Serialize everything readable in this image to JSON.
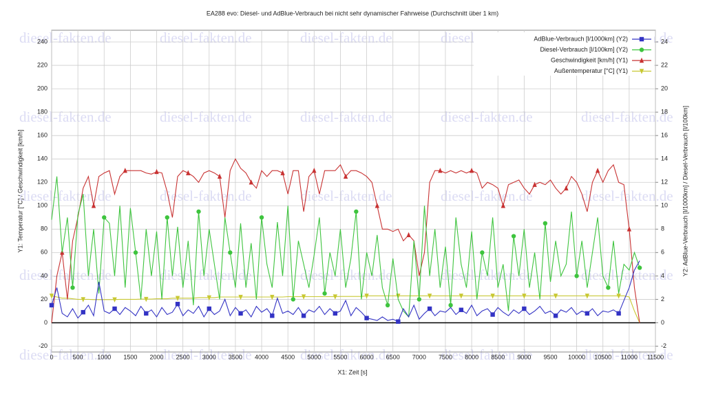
{
  "chart_data": {
    "type": "line",
    "title": "EA288 evo: Diesel- und AdBlue-Verbrauch bei nicht sehr dynamischer Fahrweise (Durchschnitt über 1 km)",
    "watermark": "diesel-fakten.de",
    "x_label": "X1: Zeit [s]",
    "y_label": "Y1: Temperatur [°C] / Geschwindigkeit [km/h]",
    "y2_label": "Y2: AdBlue-Verbrauch [l/1000km] / Diesel-Verbrauch [l/100km]",
    "xlim": [
      0,
      11500
    ],
    "ylim": [
      -25,
      250
    ],
    "y2lim": [
      -2.5,
      25
    ],
    "xticks": [
      0,
      500,
      1000,
      1500,
      2000,
      2500,
      3000,
      3500,
      4000,
      4500,
      5000,
      5500,
      6000,
      6500,
      7000,
      7500,
      8000,
      8500,
      9000,
      9500,
      10000,
      10500,
      11000,
      11500
    ],
    "yticks": [
      -20,
      0,
      20,
      40,
      60,
      80,
      100,
      120,
      140,
      160,
      180,
      200,
      220,
      240
    ],
    "y2ticks": [
      -2,
      0,
      2,
      4,
      6,
      8,
      10,
      12,
      14,
      16,
      18,
      20,
      22,
      24
    ],
    "grid": true,
    "legend": "upper right",
    "x": [
      0,
      100,
      200,
      300,
      400,
      500,
      600,
      700,
      800,
      900,
      1000,
      1100,
      1200,
      1300,
      1400,
      1500,
      1600,
      1700,
      1800,
      1900,
      2000,
      2100,
      2200,
      2300,
      2400,
      2500,
      2600,
      2700,
      2800,
      2900,
      3000,
      3100,
      3200,
      3300,
      3400,
      3500,
      3600,
      3700,
      3800,
      3900,
      4000,
      4100,
      4200,
      4300,
      4400,
      4500,
      4600,
      4700,
      4800,
      4900,
      5000,
      5100,
      5200,
      5300,
      5400,
      5500,
      5600,
      5700,
      5800,
      5900,
      6000,
      6100,
      6200,
      6300,
      6400,
      6500,
      6600,
      6700,
      6800,
      6900,
      7000,
      7100,
      7200,
      7300,
      7400,
      7500,
      7600,
      7700,
      7800,
      7900,
      8000,
      8100,
      8200,
      8300,
      8400,
      8500,
      8600,
      8700,
      8800,
      8900,
      9000,
      9100,
      9200,
      9300,
      9400,
      9500,
      9600,
      9700,
      9800,
      9900,
      10000,
      10100,
      10200,
      10300,
      10400,
      10500,
      10600,
      10700,
      10800,
      10900,
      11000,
      11100,
      11200
    ],
    "series": [
      {
        "name": "AdBlue-Verbrauch [l/1000km] (Y2)",
        "color": "#3333c4",
        "marker": "square",
        "axis": "y2",
        "values": [
          1.5,
          3,
          0.8,
          0.5,
          1.2,
          0.4,
          0.9,
          1.5,
          0.6,
          3.5,
          1,
          0.8,
          1.2,
          0.7,
          1.3,
          1,
          0.6,
          1.4,
          0.8,
          1.1,
          0.5,
          1.3,
          0.7,
          0.9,
          1.6,
          0.6,
          1.1,
          0.8,
          1.4,
          0.5,
          1.2,
          0.7,
          1,
          2,
          0.6,
          1.3,
          0.8,
          1.1,
          0.5,
          1.4,
          0.9,
          1.2,
          0.6,
          2.1,
          0.8,
          1,
          0.7,
          1.3,
          0.6,
          1.1,
          0.9,
          1.4,
          0.7,
          1.2,
          0.8,
          1,
          1.9,
          0.6,
          1.3,
          0.9,
          0.4,
          0.3,
          0.2,
          0.5,
          0.2,
          0.3,
          0.1,
          1.2,
          0.5,
          1.5,
          0.3,
          0.8,
          1.2,
          0.6,
          1,
          0.9,
          1.3,
          0.7,
          1.1,
          0.8,
          1.5,
          0.6,
          1,
          1.2,
          0.7,
          1.3,
          0.9,
          0.6,
          1.1,
          0.8,
          1.2,
          0.7,
          1,
          1.4,
          0.8,
          1,
          0.6,
          1.1,
          0.9,
          1.3,
          0.7,
          1,
          0.8,
          1.2,
          0.6,
          1,
          0.9,
          1.1,
          0.8,
          1.9,
          3,
          4.5,
          5.3
        ]
      },
      {
        "name": "Diesel-Verbrauch [l/100km] (Y2)",
        "color": "#3ec43e",
        "marker": "circle",
        "axis": "y2",
        "values": [
          8.8,
          12.5,
          6,
          9,
          3,
          9.2,
          11,
          4,
          8,
          2.5,
          9,
          8.5,
          4,
          10,
          3,
          9.8,
          6,
          2,
          8,
          4,
          7.8,
          2,
          9,
          4,
          8.2,
          3,
          7,
          1.5,
          9.5,
          4,
          8,
          5,
          2,
          9,
          6,
          3,
          8.5,
          3,
          6.8,
          2,
          9,
          5,
          3,
          8.6,
          4,
          10,
          2,
          7,
          5,
          3,
          5.8,
          9,
          2.5,
          6,
          4,
          8,
          3,
          5.5,
          9.5,
          2,
          6,
          4,
          7.5,
          3,
          1.5,
          5.5,
          2,
          1,
          0.5,
          7,
          2,
          10,
          4,
          8,
          3,
          6.5,
          1.5,
          9,
          5,
          3,
          7.8,
          2,
          6,
          4,
          9,
          3,
          5,
          1,
          7.4,
          4,
          8,
          3,
          6,
          2,
          8.5,
          3.5,
          7,
          4,
          5,
          9.5,
          4,
          7,
          3,
          6,
          9,
          4,
          3,
          7,
          2.5,
          5,
          4.5,
          6,
          4.7
        ]
      },
      {
        "name": "Geschwindigkeit [km/h] (Y1)",
        "color": "#c83232",
        "marker": "triangle-up",
        "values": [
          0,
          40,
          60,
          20,
          70,
          90,
          115,
          125,
          100,
          125,
          128,
          130,
          110,
          125,
          130,
          130,
          130,
          130,
          128,
          127,
          129,
          128,
          112,
          90,
          125,
          130,
          128,
          125,
          120,
          128,
          130,
          128,
          125,
          90,
          130,
          140,
          132,
          128,
          120,
          115,
          130,
          125,
          130,
          130,
          128,
          110,
          130,
          130,
          95,
          125,
          130,
          110,
          130,
          130,
          130,
          135,
          125,
          130,
          130,
          128,
          125,
          120,
          100,
          80,
          80,
          78,
          80,
          70,
          75,
          70,
          40,
          60,
          120,
          130,
          130,
          128,
          130,
          128,
          130,
          128,
          130,
          128,
          115,
          120,
          118,
          115,
          100,
          118,
          120,
          122,
          115,
          110,
          118,
          120,
          118,
          122,
          115,
          110,
          115,
          125,
          120,
          110,
          95,
          120,
          130,
          120,
          130,
          135,
          120,
          118,
          80,
          30,
          0
        ]
      },
      {
        "name": "Außentemperatur [°C] (Y1)",
        "color": "#c8c832",
        "marker": "triangle-down",
        "values": [
          23,
          22,
          21,
          21,
          20.5,
          20,
          20,
          20,
          19.8,
          19.8,
          19.8,
          19.8,
          19.8,
          20,
          20,
          20,
          20,
          20.2,
          20.2,
          20.2,
          20.5,
          20.5,
          20.5,
          21,
          21,
          21,
          21,
          21,
          21.5,
          21.5,
          21.5,
          21.5,
          22,
          22,
          22,
          22,
          22,
          22,
          22,
          22,
          22,
          22,
          22,
          22,
          22,
          22.3,
          22.3,
          22.3,
          22.3,
          22.3,
          22.3,
          22.3,
          22.3,
          22.3,
          22.3,
          22.5,
          22.5,
          22.5,
          22.5,
          22.5,
          23,
          23,
          23,
          23,
          23,
          23,
          23,
          23,
          23,
          23,
          23,
          23,
          23,
          23,
          23,
          23,
          23,
          23,
          23,
          23,
          23,
          23,
          23,
          23,
          23,
          23,
          23,
          23,
          23,
          23,
          23,
          23,
          23,
          23,
          23,
          23,
          23,
          23,
          23,
          23,
          23,
          23,
          23,
          23,
          23,
          23,
          23,
          23,
          23,
          23,
          22,
          10,
          0
        ]
      }
    ]
  }
}
